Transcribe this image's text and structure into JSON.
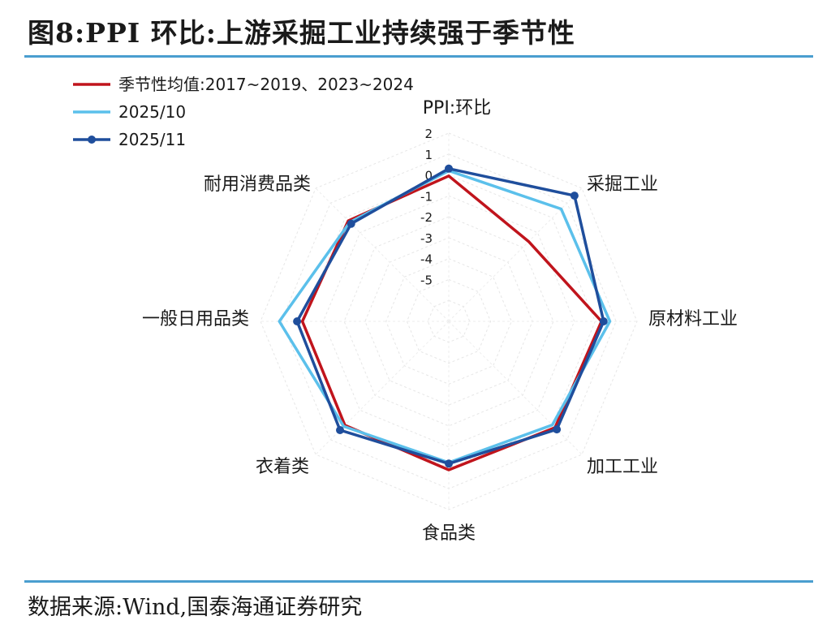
{
  "title": "图8:PPI 环比:上游采掘工业持续强于季节性",
  "source": "数据来源:Wind,国泰海通证券研究",
  "chart_data": {
    "type": "radar",
    "title": "PPI:环比",
    "categories": [
      "PPI:环比",
      "采掘工业",
      "原材料工业",
      "加工工业",
      "食品类",
      "衣着类",
      "一般日用品类",
      "耐用消费品类"
    ],
    "rlim": [
      -7,
      2
    ],
    "ticks": [
      2,
      1,
      0,
      -1,
      -2,
      -3,
      -4,
      -5
    ],
    "tick_labels": [
      "2",
      "1",
      "0",
      "-1",
      "-2",
      "-3",
      "-4",
      "-5"
    ],
    "legend_position": "top-left",
    "series": [
      {
        "name": "季节性均值:2017~2019、2023~2024",
        "color": "#c0141c",
        "marker": false,
        "values": [
          -0.05,
          -1.6,
          0.3,
          0.18,
          0.1,
          0.02,
          0.0,
          -0.2
        ]
      },
      {
        "name": "2025/10",
        "color": "#5bc0eb",
        "marker": false,
        "values": [
          0.2,
          0.6,
          0.7,
          0.0,
          -0.25,
          0.1,
          1.1,
          -0.3
        ]
      },
      {
        "name": "2025/11",
        "color": "#1f4e9c",
        "marker": true,
        "values": [
          0.3,
          1.5,
          0.4,
          0.3,
          -0.2,
          0.35,
          0.25,
          -0.4
        ]
      }
    ]
  }
}
